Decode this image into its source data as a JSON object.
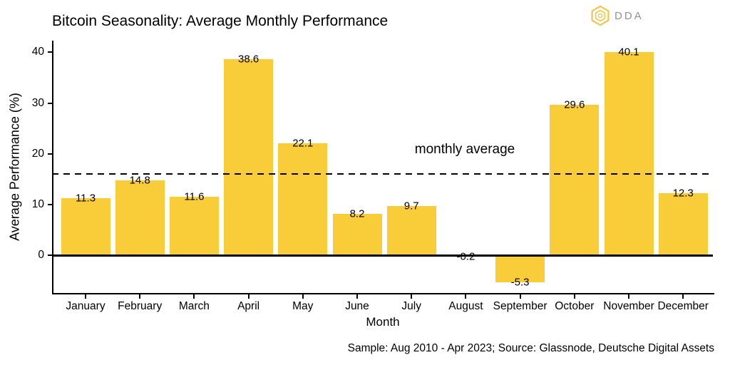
{
  "header": {
    "logo_text": "DDA"
  },
  "chart_data": {
    "type": "bar",
    "title": "Bitcoin Seasonality: Average Monthly Performance",
    "categories": [
      "January",
      "February",
      "March",
      "April",
      "May",
      "June",
      "July",
      "August",
      "September",
      "October",
      "November",
      "December"
    ],
    "values": [
      11.3,
      14.8,
      11.6,
      38.6,
      22.1,
      8.2,
      9.7,
      -0.2,
      -5.3,
      29.6,
      40.1,
      12.3
    ],
    "xlabel": "Month",
    "ylabel": "Average Performance (%)",
    "yticks": [
      0,
      10,
      20,
      30,
      40
    ],
    "ylim": [
      -7.4,
      42.3
    ],
    "grid": false,
    "legend": "none",
    "bar_color": "#F9CD3A",
    "axis_color": "#000000",
    "reference_line": {
      "label": "monthly average",
      "value": 16.07,
      "style": "dashed",
      "color": "#000000"
    }
  },
  "footer": {
    "caption": "Sample: Aug 2010 - Apr 2023; Source: Glassnode, Deutsche Digital Assets"
  },
  "logo": {
    "text": "DDA",
    "icon": "hexagon-logo-icon",
    "icon_color": "#F0C64A",
    "text_color": "#8F9296"
  }
}
